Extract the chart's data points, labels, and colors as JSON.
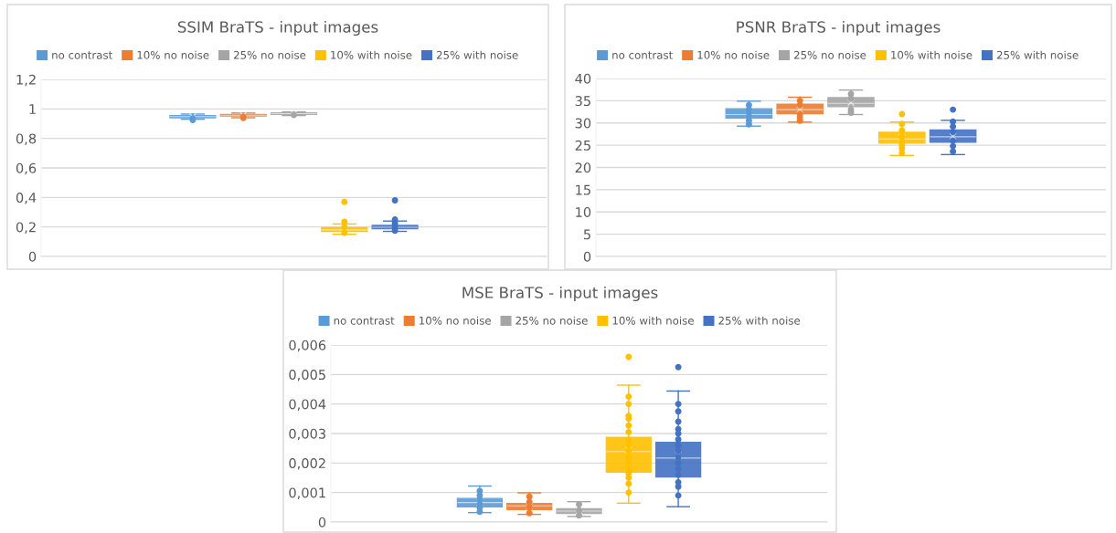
{
  "chart_data": [
    {
      "type": "box",
      "title": "SSIM BraTS - input images",
      "categories": [
        null
      ],
      "legend": "top",
      "grid": "y",
      "tick_labels": "y",
      "marker": "circle",
      "ylim": [
        0,
        1.2
      ],
      "yticks": [
        0,
        {
          "value": 0.2,
          "label": "0,2"
        },
        {
          "value": 0.4,
          "label": "0,4"
        },
        {
          "value": 0.6,
          "label": "0,6"
        },
        {
          "value": 0.8,
          "label": "0,8"
        },
        1,
        {
          "value": 1.2,
          "label": "1,2"
        }
      ],
      "series": [
        {
          "name": "no contrast",
          "color": "#5b9bd5",
          "boxes": [
            {
              "low": 0.93,
              "q1": 0.94,
              "median": 0.948,
              "q3": 0.955,
              "high": 0.965,
              "mean": 0.947,
              "outliers": [
                0.925,
                0.935
              ]
            }
          ]
        },
        {
          "name": "10% no noise",
          "color": "#ed7d31",
          "boxes": [
            {
              "low": 0.94,
              "q1": 0.952,
              "median": 0.957,
              "q3": 0.962,
              "high": 0.972,
              "mean": 0.957,
              "outliers": [
                0.938,
                0.945
              ]
            }
          ]
        },
        {
          "name": "25% no noise",
          "color": "#a5a5a5",
          "boxes": [
            {
              "low": 0.955,
              "q1": 0.963,
              "median": 0.968,
              "q3": 0.973,
              "high": 0.98,
              "mean": 0.967,
              "outliers": [
                0.958
              ]
            }
          ]
        },
        {
          "name": "10% with noise",
          "color": "#ffc000",
          "boxes": [
            {
              "low": 0.15,
              "q1": 0.17,
              "median": 0.18,
              "q3": 0.195,
              "high": 0.22,
              "mean": 0.18,
              "outliers": [
                0.16,
                0.2,
                0.235,
                0.37
              ]
            }
          ]
        },
        {
          "name": "25% with noise",
          "color": "#4472c4",
          "boxes": [
            {
              "low": 0.17,
              "q1": 0.188,
              "median": 0.198,
              "q3": 0.21,
              "high": 0.24,
              "mean": 0.2,
              "outliers": [
                0.175,
                0.19,
                0.21,
                0.225,
                0.25,
                0.38
              ]
            }
          ]
        }
      ]
    },
    {
      "type": "box",
      "title": "PSNR BraTS - input images",
      "categories": [
        null
      ],
      "legend": "top",
      "grid": "y",
      "tick_labels": "y",
      "marker": "circle",
      "ylim": [
        0,
        40
      ],
      "yticks": [
        0,
        5,
        10,
        15,
        20,
        25,
        30,
        35,
        40
      ],
      "series": [
        {
          "name": "no contrast",
          "color": "#5b9bd5",
          "boxes": [
            {
              "low": 29.3,
              "q1": 31.1,
              "median": 31.9,
              "q3": 33.2,
              "high": 34.9,
              "mean": 32,
              "outliers": [
                34,
                33,
                32.5,
                31.5,
                30.5,
                29.7
              ]
            }
          ]
        },
        {
          "name": "10% no noise",
          "color": "#ed7d31",
          "boxes": [
            {
              "low": 30.2,
              "q1": 32.1,
              "median": 33,
              "q3": 34.2,
              "high": 35.8,
              "mean": 33,
              "outliers": [
                35,
                34,
                32,
                31.3,
                30.5
              ]
            }
          ]
        },
        {
          "name": "25% no noise",
          "color": "#a5a5a5",
          "boxes": [
            {
              "low": 31.9,
              "q1": 33.7,
              "median": 34.4,
              "q3": 35.7,
              "high": 37.4,
              "mean": 34.6,
              "outliers": [
                36.5,
                35.5,
                33,
                32.3
              ]
            }
          ]
        },
        {
          "name": "10% with noise",
          "color": "#ffc000",
          "boxes": [
            {
              "low": 22.7,
              "q1": 25.5,
              "median": 26.4,
              "q3": 27.9,
              "high": 30.2,
              "mean": 26.7,
              "outliers": [
                32,
                29.8,
                28.3,
                27,
                26,
                25,
                24.3,
                23.3
              ]
            }
          ]
        },
        {
          "name": "25% with noise",
          "color": "#4472c4",
          "boxes": [
            {
              "low": 22.9,
              "q1": 25.7,
              "median": 26.9,
              "q3": 28.4,
              "high": 30.6,
              "mean": 27,
              "outliers": [
                33,
                30.3,
                29.2,
                28,
                26,
                24.8,
                23.6
              ]
            }
          ]
        }
      ]
    },
    {
      "type": "box",
      "title": "MSE BraTS - input images",
      "categories": [
        null
      ],
      "legend": "top",
      "grid": "y",
      "tick_labels": "y",
      "marker": "circle",
      "ylim": [
        0,
        0.006
      ],
      "yticks": [
        0,
        {
          "value": 0.001,
          "label": "0,001"
        },
        {
          "value": 0.002,
          "label": "0,002"
        },
        {
          "value": 0.003,
          "label": "0,003"
        },
        {
          "value": 0.004,
          "label": "0,004"
        },
        {
          "value": 0.005,
          "label": "0,005"
        },
        {
          "value": 0.006,
          "label": "0,006"
        }
      ],
      "series": [
        {
          "name": "no contrast",
          "color": "#5b9bd5",
          "boxes": [
            {
              "low": 0.00032,
              "q1": 0.00052,
              "median": 0.00066,
              "q3": 0.0008,
              "high": 0.00122,
              "mean": 0.00066,
              "outliers": [
                0.00105,
                0.0009,
                0.00075,
                0.0006,
                0.00048,
                0.00035
              ]
            }
          ]
        },
        {
          "name": "10% no noise",
          "color": "#ed7d31",
          "boxes": [
            {
              "low": 0.00026,
              "q1": 0.00042,
              "median": 0.00055,
              "q3": 0.00063,
              "high": 0.00099,
              "mean": 0.00054,
              "outliers": [
                0.00086,
                0.00068,
                0.0005,
                0.0003
              ]
            }
          ]
        },
        {
          "name": "25% no noise",
          "color": "#a5a5a5",
          "boxes": [
            {
              "low": 0.00019,
              "q1": 0.00029,
              "median": 0.00037,
              "q3": 0.00045,
              "high": 0.00069,
              "mean": 0.00038,
              "outliers": [
                0.0006,
                0.0004,
                0.00022
              ]
            }
          ]
        },
        {
          "name": "10% with noise",
          "color": "#ffc000",
          "boxes": [
            {
              "low": 0.00064,
              "q1": 0.00169,
              "median": 0.00239,
              "q3": 0.00287,
              "high": 0.00464,
              "mean": 0.00245,
              "outliers": [
                0.0056,
                0.00425,
                0.004,
                0.0036,
                0.0035,
                0.00327,
                0.00305,
                0.00275,
                0.0026,
                0.0024,
                0.0022,
                0.002,
                0.0018,
                0.00165,
                0.0015,
                0.0013,
                0.001
              ]
            }
          ]
        },
        {
          "name": "25% with noise",
          "color": "#4472c4",
          "boxes": [
            {
              "low": 0.00052,
              "q1": 0.00153,
              "median": 0.00217,
              "q3": 0.0027,
              "high": 0.00444,
              "mean": 0.00228,
              "outliers": [
                0.00525,
                0.004,
                0.00375,
                0.0034,
                0.00315,
                0.003,
                0.0028,
                0.0026,
                0.0024,
                0.0022,
                0.002,
                0.0018,
                0.0016,
                0.00135,
                0.0012,
                0.0009
              ]
            }
          ]
        }
      ]
    }
  ]
}
